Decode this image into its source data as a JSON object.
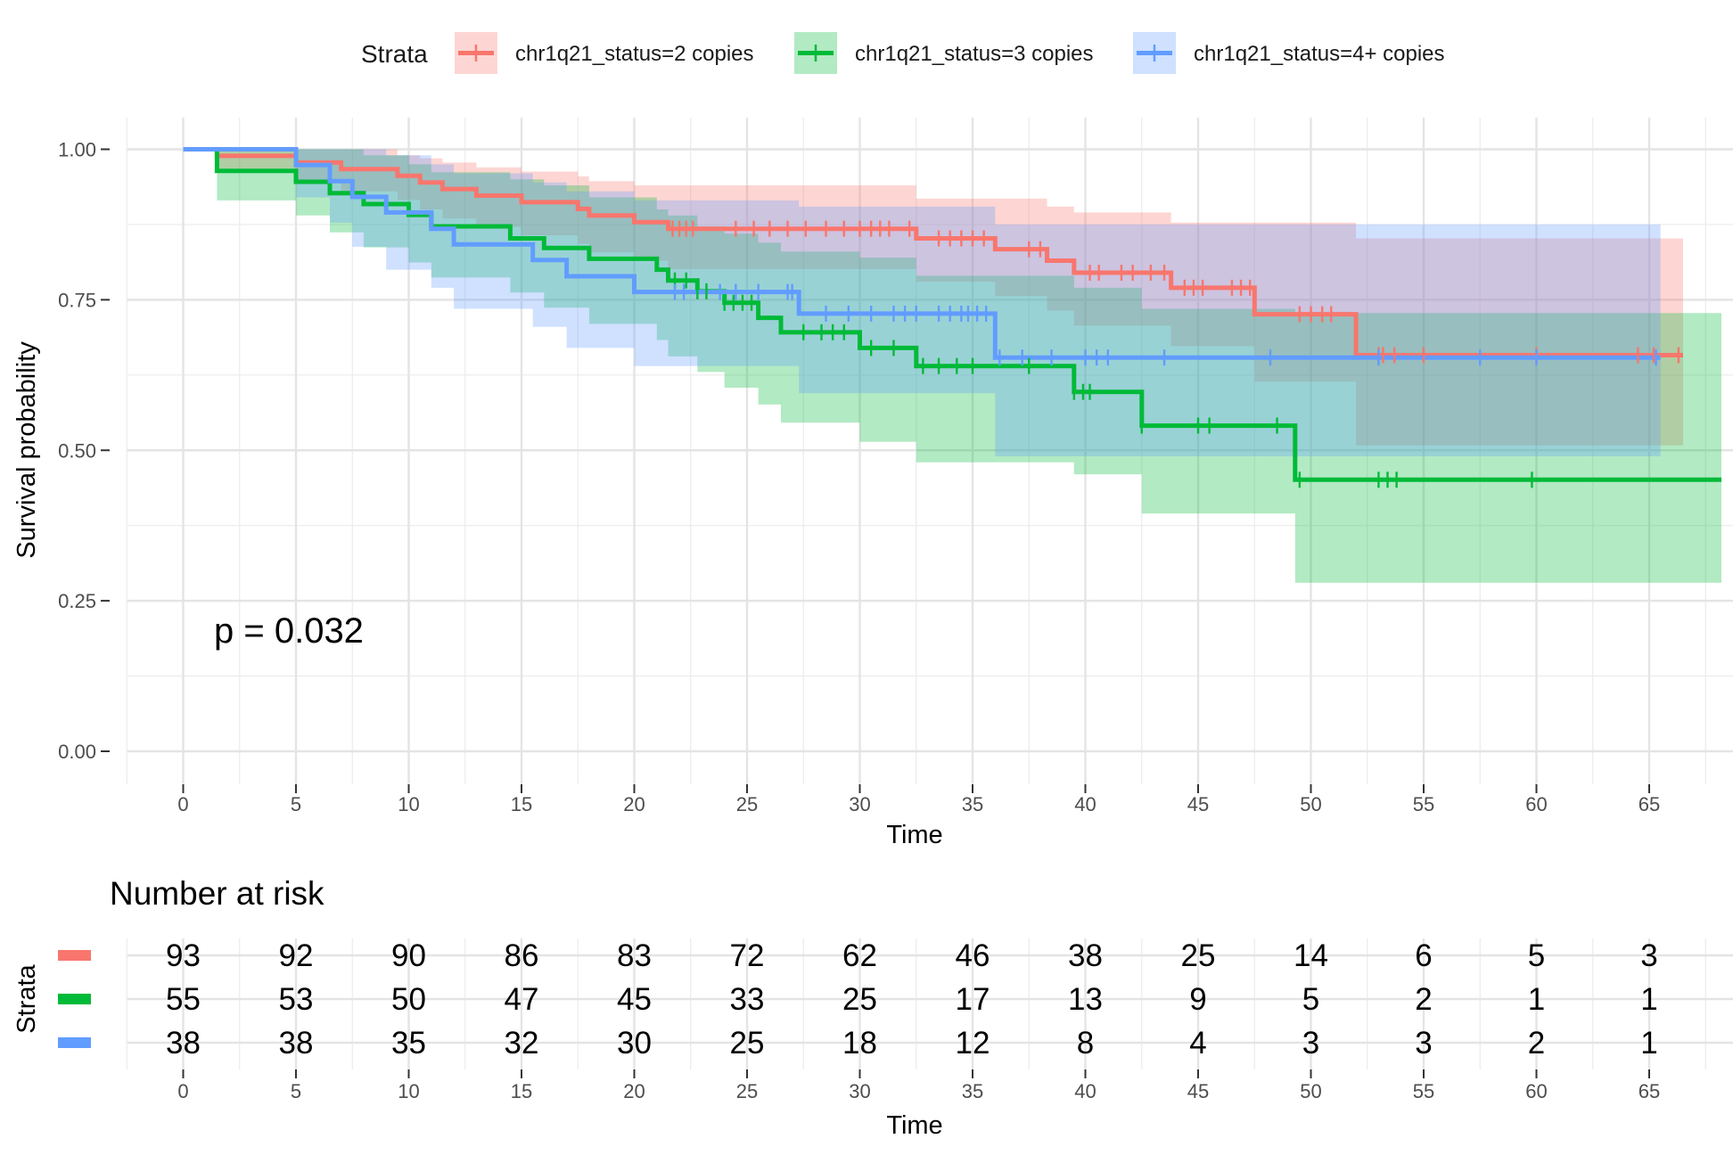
{
  "legend": {
    "title": "Strata",
    "entries": [
      {
        "label": "chr1q21_status=2 copies",
        "color": "#F8766D"
      },
      {
        "label": "chr1q21_status=3 copies",
        "color": "#00BA38"
      },
      {
        "label": "chr1q21_status=4+ copies",
        "color": "#619CFF"
      }
    ]
  },
  "chart_data": {
    "type": "line",
    "subtype": "kaplan-meier survival curve with confidence bands",
    "xlabel": "Time",
    "ylabel": "Survival probability",
    "xlim": [
      -2.5,
      68.2
    ],
    "ylim": [
      -0.03,
      1.05
    ],
    "x_ticks": [
      0,
      5,
      10,
      15,
      20,
      25,
      30,
      35,
      40,
      45,
      50,
      55,
      60,
      65
    ],
    "y_ticks": [
      0.0,
      0.25,
      0.5,
      0.75,
      1.0
    ],
    "y_tick_labels": [
      "0.00",
      "0.25",
      "0.50",
      "0.75",
      "1.00"
    ],
    "grid": true,
    "legend_position": "top",
    "annotation": "p = 0.032",
    "series": [
      {
        "name": "chr1q21_status=2 copies",
        "color": "#F8766D",
        "steps": [
          [
            0,
            1.0
          ],
          [
            1.5,
            0.989
          ],
          [
            5,
            0.978
          ],
          [
            7,
            0.967
          ],
          [
            9.5,
            0.956
          ],
          [
            10.5,
            0.945
          ],
          [
            11.5,
            0.934
          ],
          [
            13,
            0.923
          ],
          [
            15,
            0.912
          ],
          [
            17.5,
            0.901
          ],
          [
            18,
            0.89
          ],
          [
            20,
            0.879
          ],
          [
            21.5,
            0.868
          ],
          [
            32.5,
            0.852
          ],
          [
            36,
            0.834
          ],
          [
            38.3,
            0.815
          ],
          [
            39.5,
            0.795
          ],
          [
            43.8,
            0.77
          ],
          [
            47.5,
            0.726
          ],
          [
            52,
            0.658
          ],
          [
            66.5,
            0.658
          ]
        ],
        "censor_times": [
          21.7,
          22.0,
          22.3,
          22.6,
          24.5,
          25.3,
          26.0,
          26.8,
          27.6,
          28.5,
          29.3,
          30.0,
          30.5,
          30.9,
          31.3,
          32.2,
          33.5,
          34.0,
          34.5,
          35.0,
          35.5,
          37.5,
          38.0,
          40.2,
          40.6,
          41.6,
          42.1,
          42.9,
          43.5,
          44.4,
          44.8,
          45.2,
          46.5,
          46.9,
          47.3,
          49.5,
          50.0,
          50.5,
          50.9,
          53.0,
          53.2,
          53.7,
          55.0,
          60.0,
          64.5,
          65.2,
          66.3
        ],
        "ci_lower": [
          [
            0,
            1.0
          ],
          [
            1.5,
            0.968
          ],
          [
            5,
            0.945
          ],
          [
            7,
            0.93
          ],
          [
            9.5,
            0.916
          ],
          [
            10.5,
            0.9
          ],
          [
            11.5,
            0.885
          ],
          [
            13,
            0.871
          ],
          [
            15,
            0.857
          ],
          [
            17.5,
            0.843
          ],
          [
            18,
            0.829
          ],
          [
            20,
            0.815
          ],
          [
            21.5,
            0.801
          ],
          [
            32.5,
            0.78
          ],
          [
            36,
            0.756
          ],
          [
            38.3,
            0.732
          ],
          [
            39.5,
            0.707
          ],
          [
            43.8,
            0.673
          ],
          [
            47.5,
            0.614
          ],
          [
            52,
            0.508
          ],
          [
            66.5,
            0.508
          ]
        ],
        "ci_upper": [
          [
            0,
            1.0
          ],
          [
            1.5,
            1.0
          ],
          [
            5,
            1.0
          ],
          [
            7,
            1.0
          ],
          [
            9.5,
            0.99
          ],
          [
            10.5,
            0.985
          ],
          [
            11.5,
            0.978
          ],
          [
            13,
            0.97
          ],
          [
            15,
            0.963
          ],
          [
            17.5,
            0.955
          ],
          [
            18,
            0.947
          ],
          [
            20,
            0.94
          ],
          [
            21.5,
            0.94
          ],
          [
            32.5,
            0.918
          ],
          [
            36,
            0.918
          ],
          [
            38.3,
            0.905
          ],
          [
            39.5,
            0.895
          ],
          [
            43.8,
            0.878
          ],
          [
            47.5,
            0.878
          ],
          [
            52,
            0.852
          ],
          [
            66.5,
            0.852
          ]
        ]
      },
      {
        "name": "chr1q21_status=3 copies",
        "color": "#00BA38",
        "steps": [
          [
            0,
            1.0
          ],
          [
            1.5,
            0.964
          ],
          [
            5,
            0.946
          ],
          [
            6.5,
            0.927
          ],
          [
            8,
            0.909
          ],
          [
            10,
            0.891
          ],
          [
            11,
            0.872
          ],
          [
            14.5,
            0.852
          ],
          [
            16,
            0.836
          ],
          [
            18,
            0.818
          ],
          [
            21,
            0.8
          ],
          [
            21.5,
            0.782
          ],
          [
            22.8,
            0.764
          ],
          [
            24,
            0.745
          ],
          [
            25.5,
            0.72
          ],
          [
            26.5,
            0.696
          ],
          [
            30,
            0.67
          ],
          [
            32.5,
            0.64
          ],
          [
            39.5,
            0.597
          ],
          [
            42.5,
            0.541
          ],
          [
            49.3,
            0.451
          ],
          [
            68.2,
            0.451
          ]
        ],
        "censor_times": [
          21.8,
          22.3,
          22.8,
          23.2,
          24.0,
          24.4,
          24.8,
          25.2,
          27.5,
          28.3,
          28.8,
          29.3,
          30.5,
          31.5,
          32.8,
          33.5,
          34.3,
          35.0,
          37.5,
          39.5,
          39.9,
          40.2,
          42.5,
          45.0,
          45.5,
          48.5,
          49.5,
          53.0,
          53.4,
          53.8,
          59.8
        ],
        "ci_lower": [
          [
            0,
            1.0
          ],
          [
            1.5,
            0.915
          ],
          [
            5,
            0.89
          ],
          [
            6.5,
            0.862
          ],
          [
            8,
            0.837
          ],
          [
            10,
            0.812
          ],
          [
            11,
            0.787
          ],
          [
            14.5,
            0.762
          ],
          [
            16,
            0.737
          ],
          [
            18,
            0.71
          ],
          [
            21,
            0.683
          ],
          [
            21.5,
            0.656
          ],
          [
            22.8,
            0.63
          ],
          [
            24,
            0.604
          ],
          [
            25.5,
            0.576
          ],
          [
            26.5,
            0.546
          ],
          [
            30,
            0.514
          ],
          [
            32.5,
            0.48
          ],
          [
            39.5,
            0.46
          ],
          [
            42.5,
            0.395
          ],
          [
            49.3,
            0.28
          ],
          [
            68.2,
            0.28
          ]
        ],
        "ci_upper": [
          [
            0,
            1.0
          ],
          [
            1.5,
            1.0
          ],
          [
            5,
            1.0
          ],
          [
            6.5,
            1.0
          ],
          [
            8,
            0.99
          ],
          [
            10,
            0.975
          ],
          [
            11,
            0.962
          ],
          [
            14.5,
            0.95
          ],
          [
            16,
            0.94
          ],
          [
            18,
            0.92
          ],
          [
            21,
            0.9
          ],
          [
            21.5,
            0.89
          ],
          [
            22.8,
            0.872
          ],
          [
            24,
            0.86
          ],
          [
            25.5,
            0.845
          ],
          [
            26.5,
            0.83
          ],
          [
            30,
            0.82
          ],
          [
            32.5,
            0.79
          ],
          [
            39.5,
            0.77
          ],
          [
            42.5,
            0.735
          ],
          [
            49.3,
            0.728
          ],
          [
            68.2,
            0.728
          ]
        ]
      },
      {
        "name": "chr1q21_status=4+ copies",
        "color": "#619CFF",
        "steps": [
          [
            0,
            1.0
          ],
          [
            5,
            0.974
          ],
          [
            6.5,
            0.947
          ],
          [
            7.5,
            0.921
          ],
          [
            9,
            0.895
          ],
          [
            11,
            0.868
          ],
          [
            12,
            0.842
          ],
          [
            14,
            0.842
          ],
          [
            15.5,
            0.816
          ],
          [
            17,
            0.789
          ],
          [
            20,
            0.763
          ],
          [
            27.3,
            0.727
          ],
          [
            36,
            0.654
          ],
          [
            65.5,
            0.654
          ]
        ],
        "censor_times": [
          21.8,
          22.2,
          23.8,
          24.5,
          25.5,
          26.8,
          27.0,
          28.5,
          29.5,
          30.5,
          31.5,
          32.0,
          32.5,
          33.5,
          34.0,
          34.5,
          34.8,
          35.2,
          35.6,
          36.2,
          37.2,
          38.5,
          40.0,
          40.5,
          41.0,
          43.5,
          48.2,
          53.0,
          57.5,
          60.0,
          65.3
        ],
        "ci_lower": [
          [
            0,
            1.0
          ],
          [
            5,
            0.92
          ],
          [
            6.5,
            0.878
          ],
          [
            7.5,
            0.838
          ],
          [
            9,
            0.8
          ],
          [
            11,
            0.77
          ],
          [
            12,
            0.735
          ],
          [
            15.5,
            0.705
          ],
          [
            17,
            0.67
          ],
          [
            20,
            0.64
          ],
          [
            27.3,
            0.595
          ],
          [
            36,
            0.49
          ],
          [
            65.5,
            0.49
          ]
        ],
        "ci_upper": [
          [
            0,
            1.0
          ],
          [
            5,
            1.0
          ],
          [
            6.5,
            1.0
          ],
          [
            7.5,
            1.0
          ],
          [
            9,
            0.99
          ],
          [
            11,
            0.975
          ],
          [
            12,
            0.96
          ],
          [
            15.5,
            0.945
          ],
          [
            17,
            0.93
          ],
          [
            20,
            0.915
          ],
          [
            27.3,
            0.905
          ],
          [
            36,
            0.875
          ],
          [
            65.5,
            0.875
          ]
        ]
      }
    ],
    "risk_table": {
      "title": "Number at risk",
      "ylabel": "Strata",
      "xlabel": "Time",
      "times": [
        0,
        5,
        10,
        15,
        20,
        25,
        30,
        35,
        40,
        45,
        50,
        55,
        60,
        65
      ],
      "rows": [
        {
          "color": "#F8766D",
          "values": [
            93,
            92,
            90,
            86,
            83,
            72,
            62,
            46,
            38,
            25,
            14,
            6,
            5,
            3
          ]
        },
        {
          "color": "#00BA38",
          "values": [
            55,
            53,
            50,
            47,
            45,
            33,
            25,
            17,
            13,
            9,
            5,
            2,
            1,
            1
          ]
        },
        {
          "color": "#619CFF",
          "values": [
            38,
            38,
            35,
            32,
            30,
            25,
            18,
            12,
            8,
            4,
            3,
            3,
            2,
            1
          ]
        }
      ]
    }
  }
}
